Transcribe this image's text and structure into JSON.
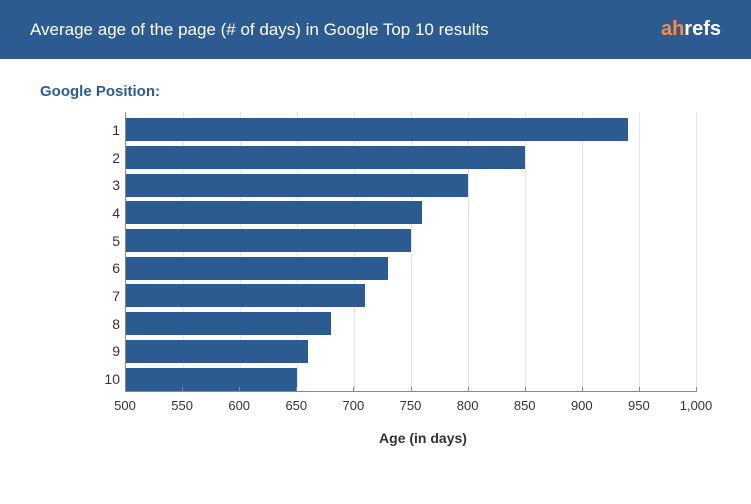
{
  "header": {
    "title": "Average age of the page (# of days) in Google Top 10 results",
    "logo_prefix": "ah",
    "logo_suffix": "refs"
  },
  "chart": {
    "type": "horizontal-bar",
    "y_label": "Google Position:",
    "x_label": "Age (in days)",
    "categories": [
      "1",
      "2",
      "3",
      "4",
      "5",
      "6",
      "7",
      "8",
      "9",
      "10"
    ],
    "values": [
      940,
      850,
      800,
      760,
      750,
      730,
      710,
      680,
      660,
      650
    ],
    "xlim": [
      500,
      1000
    ],
    "xtick_step": 50,
    "xticks": [
      "500",
      "550",
      "600",
      "650",
      "700",
      "750",
      "800",
      "850",
      "900",
      "950",
      "1,000"
    ],
    "bar_color": "#2c5b92",
    "header_bg": "#2c5b92",
    "title_color": "#ffffff",
    "logo_accent": "#ff8c42",
    "grid_color": "#e5e5e5",
    "axis_color": "#888888",
    "text_color": "#333333",
    "background_color": "#ffffff",
    "title_fontsize": 17,
    "label_fontsize": 14,
    "tick_fontsize": 13
  }
}
